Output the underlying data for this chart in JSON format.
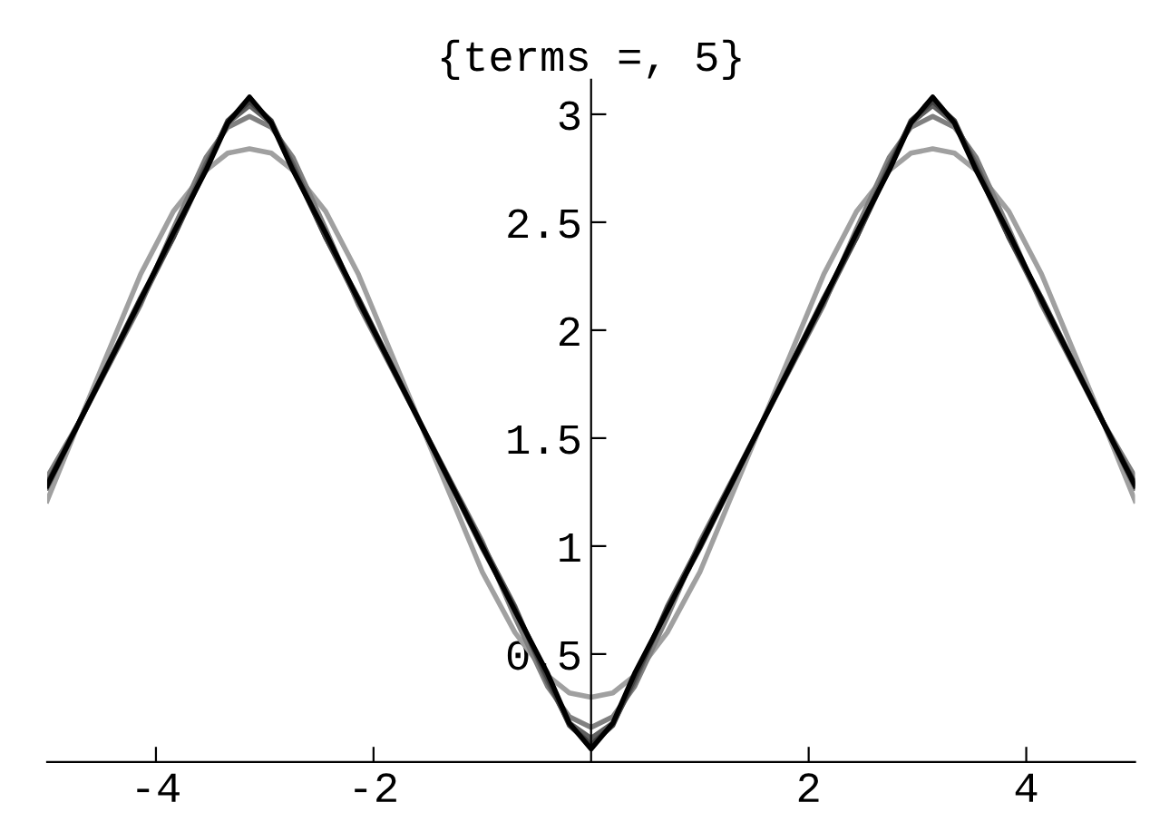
{
  "chart_data": {
    "type": "line",
    "title": "{terms =, 5}",
    "x": [
      -5,
      -4.71,
      -4.14,
      -3.84,
      -3.54,
      -3.34,
      -3.14,
      -2.94,
      -2.74,
      -2.44,
      -2.14,
      -1.57,
      -1,
      -0.7,
      -0.4,
      -0.2,
      0,
      0.2,
      0.4,
      0.7,
      1,
      1.57,
      2.14,
      2.44,
      2.74,
      2.94,
      3.14,
      3.34,
      3.54,
      3.84,
      4.14,
      4.71,
      5
    ],
    "series": [
      {
        "color": "#a0a0a0",
        "values": [
          1.21,
          1.57,
          2.26,
          2.55,
          2.74,
          2.82,
          2.84,
          2.82,
          2.74,
          2.55,
          2.26,
          1.57,
          0.88,
          0.6,
          0.4,
          0.32,
          0.3,
          0.32,
          0.4,
          0.6,
          0.88,
          1.57,
          2.26,
          2.55,
          2.74,
          2.82,
          2.84,
          2.82,
          2.74,
          2.55,
          2.26,
          1.57,
          1.21
        ]
      },
      {
        "color": "#808080",
        "values": [
          1.32,
          1.57,
          2.12,
          2.47,
          2.8,
          2.94,
          2.99,
          2.94,
          2.8,
          2.47,
          2.12,
          1.57,
          1.02,
          0.67,
          0.35,
          0.21,
          0.16,
          0.21,
          0.35,
          0.67,
          1.02,
          1.57,
          2.12,
          2.47,
          2.8,
          2.94,
          2.99,
          2.94,
          2.8,
          2.47,
          2.12,
          1.57,
          1.32
        ]
      },
      {
        "color": "#606060",
        "values": [
          1.27,
          1.57,
          2.13,
          2.43,
          2.77,
          2.96,
          3.04,
          2.96,
          2.77,
          2.43,
          2.13,
          1.57,
          1.01,
          0.72,
          0.37,
          0.18,
          0.11,
          0.18,
          0.37,
          0.72,
          1.01,
          1.57,
          2.13,
          2.43,
          2.77,
          2.96,
          3.04,
          2.96,
          2.77,
          2.43,
          2.13,
          1.57,
          1.27
        ]
      },
      {
        "color": "#404040",
        "values": [
          1.29,
          1.57,
          2.15,
          2.43,
          2.75,
          2.97,
          3.06,
          2.97,
          2.75,
          2.43,
          2.15,
          1.57,
          0.99,
          0.71,
          0.39,
          0.17,
          0.08,
          0.17,
          0.39,
          0.71,
          0.99,
          1.57,
          2.15,
          2.43,
          2.75,
          2.97,
          3.06,
          2.97,
          2.75,
          2.43,
          2.15,
          1.57,
          1.29
        ]
      },
      {
        "color": "#000000",
        "values": [
          1.28,
          1.57,
          2.14,
          2.45,
          2.74,
          2.96,
          3.08,
          2.96,
          2.74,
          2.45,
          2.14,
          1.57,
          1.0,
          0.7,
          0.41,
          0.18,
          0.06,
          0.18,
          0.41,
          0.7,
          1.0,
          1.57,
          2.14,
          2.45,
          2.74,
          2.96,
          3.08,
          2.96,
          2.74,
          2.45,
          2.14,
          1.57,
          1.28
        ]
      }
    ],
    "xlim": [
      -5,
      5
    ],
    "ylim": [
      0,
      3.16
    ],
    "xticks": [
      -4,
      -2,
      2,
      4
    ],
    "yticks": [
      0.5,
      1,
      1.5,
      2,
      2.5,
      3
    ],
    "marker": "none",
    "line_style": "solid"
  }
}
